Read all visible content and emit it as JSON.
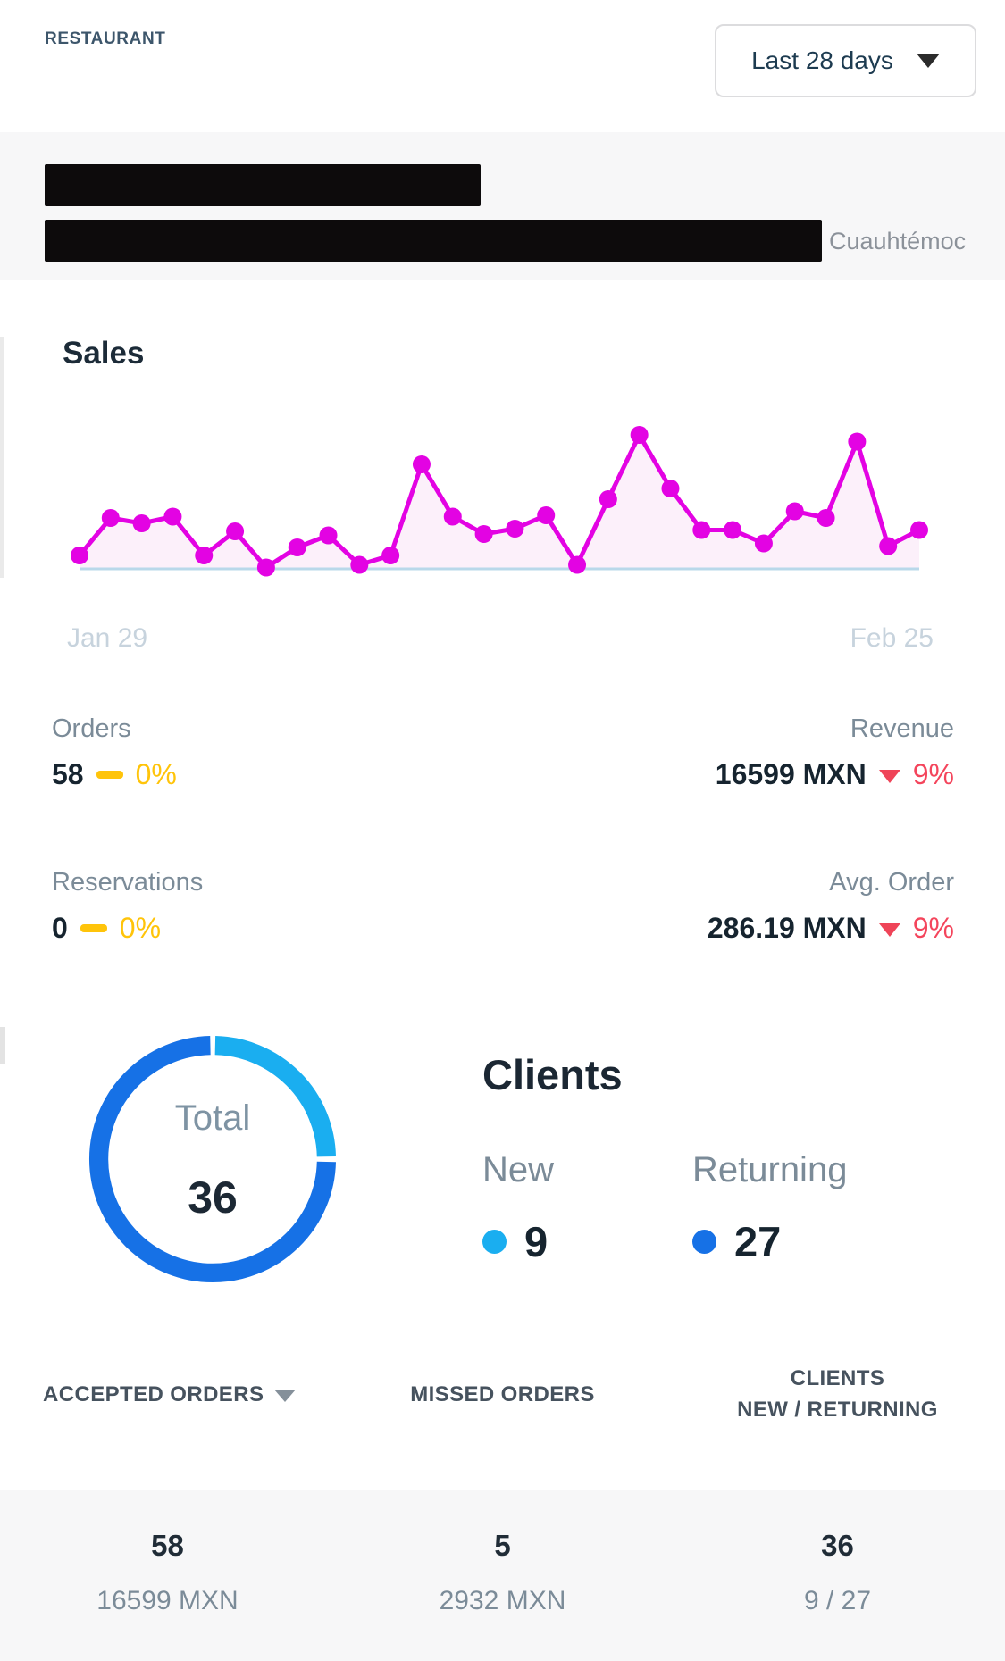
{
  "header": {
    "brand": "RESTAURANT",
    "date_range_label": "Last 28 days"
  },
  "location": {
    "city": "Cuauhtémoc"
  },
  "sales": {
    "title": "Sales",
    "stats": {
      "orders": {
        "label": "Orders",
        "value": "58",
        "direction": "flat",
        "change": "0%"
      },
      "revenue": {
        "label": "Revenue",
        "value": "16599 MXN",
        "direction": "down",
        "change": "9%"
      },
      "reservations": {
        "label": "Reservations",
        "value": "0",
        "direction": "flat",
        "change": "0%"
      },
      "avg_order": {
        "label": "Avg. Order",
        "value": "286.19 MXN",
        "direction": "down",
        "change": "9%"
      }
    }
  },
  "chart_data": [
    {
      "type": "area",
      "title": "Sales",
      "x_start_label": "Jan 29",
      "x_end_label": "Feb 25",
      "x_range": [
        "Jan 29",
        "Feb 25"
      ],
      "values": [
        10,
        38,
        34,
        39,
        10,
        28,
        1,
        16,
        25,
        3,
        10,
        78,
        39,
        26,
        30,
        40,
        3,
        52,
        100,
        60,
        29,
        29,
        19,
        43,
        38,
        95,
        17,
        29
      ],
      "ylim": [
        0,
        100
      ],
      "grid": false,
      "markers": true,
      "line_color": "#e303e3",
      "fill_color": "#fcf0fa",
      "baseline_color": "#b9d8ea"
    },
    {
      "type": "pie",
      "subtype": "donut",
      "center_label": "Total",
      "center_value": 36,
      "slices": [
        {
          "label": "New",
          "value": 9,
          "color": "#1aaef0"
        },
        {
          "label": "Returning",
          "value": 27,
          "color": "#1671e6"
        }
      ]
    }
  ],
  "clients": {
    "title": "Clients",
    "total_label": "Total",
    "total_value": "36",
    "new": {
      "label": "New",
      "value": "9",
      "color": "#1aaef0"
    },
    "returning": {
      "label": "Returning",
      "value": "27",
      "color": "#1671e6"
    }
  },
  "summary_table": {
    "columns": [
      {
        "header": "ACCEPTED ORDERS",
        "sorted": true,
        "primary": "58",
        "secondary": "16599 MXN"
      },
      {
        "header": "MISSED ORDERS",
        "sorted": false,
        "primary": "5",
        "secondary": "2932 MXN"
      },
      {
        "header_line1": "CLIENTS",
        "header_line2": "NEW / RETURNING",
        "sorted": false,
        "primary": "36",
        "secondary": "9 / 27"
      }
    ]
  },
  "colors": {
    "accent_magenta": "#e303e3",
    "new_blue": "#1aaef0",
    "returning_blue": "#1671e6",
    "flat_yellow": "#ffc40a",
    "down_red": "#f4455c"
  }
}
